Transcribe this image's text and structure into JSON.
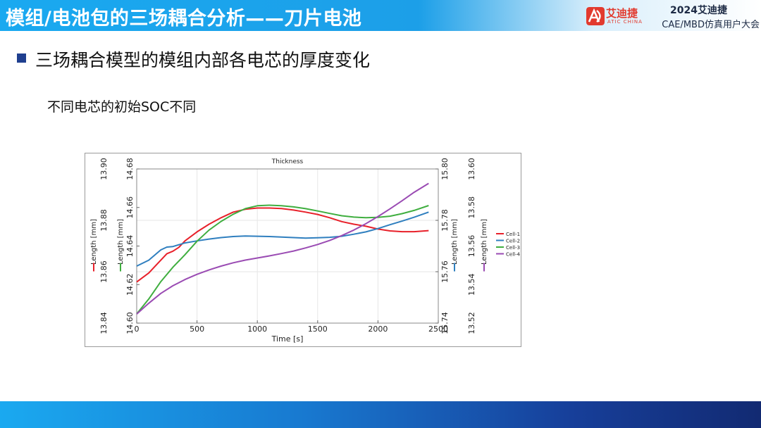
{
  "header": {
    "title": "模组/电池包的三场耦合分析——刀片电池",
    "logo_text": "艾迪捷",
    "logo_sub": "ATIC CHINA",
    "conference_line1": "2024艾迪捷",
    "conference_line2": "CAE/MBD仿真用户大会"
  },
  "content": {
    "heading": "三场耦合模型的模组内部各电芯的厚度变化",
    "subheading": "不同电芯的初始SOC不同"
  },
  "colors": {
    "accent": "#1aa9f0",
    "bullet": "#1f3f8f",
    "bottom_dark": "#122a72"
  },
  "chart_data": {
    "type": "line",
    "title": "Thickness",
    "xlabel": "Time [s]",
    "xlim": [
      0,
      2500
    ],
    "x_ticks": [
      "0",
      "500",
      "1000",
      "1500",
      "2000",
      "2500"
    ],
    "axes": [
      {
        "name": "Cell-1",
        "label": "Length [mm]",
        "side": "left",
        "ylim": [
          13.84,
          13.9
        ],
        "ticks": [
          "13.84",
          "13.86",
          "13.88",
          "13.90"
        ]
      },
      {
        "name": "Cell-3",
        "label": "Length [mm]",
        "side": "left",
        "ylim": [
          14.6,
          14.68
        ],
        "ticks": [
          "14.60",
          "14.62",
          "14.64",
          "14.66",
          "14.68"
        ]
      },
      {
        "name": "Cell-2",
        "label": "Length [mm]",
        "side": "right",
        "ylim": [
          15.74,
          15.8
        ],
        "ticks": [
          "15.74",
          "15.76",
          "15.78",
          "15.80"
        ]
      },
      {
        "name": "Cell-4",
        "label": "Length [mm]",
        "side": "right",
        "ylim": [
          13.52,
          13.6
        ],
        "ticks": [
          "13.52",
          "13.54",
          "13.56",
          "13.58",
          "13.60"
        ]
      }
    ],
    "legend_position": "right",
    "series": [
      {
        "name": "Cell-1",
        "color": "#e8202a",
        "axis": 0,
        "x": [
          0,
          100,
          200,
          250,
          300,
          350,
          400,
          500,
          600,
          700,
          800,
          900,
          1000,
          1100,
          1200,
          1300,
          1400,
          1500,
          1600,
          1700,
          1800,
          1900,
          2000,
          2100,
          2200,
          2300,
          2420
        ],
        "y": [
          13.856,
          13.8595,
          13.8645,
          13.867,
          13.868,
          13.8695,
          13.872,
          13.8755,
          13.8785,
          13.881,
          13.8832,
          13.8843,
          13.8848,
          13.8848,
          13.8846,
          13.884,
          13.8832,
          13.8823,
          13.881,
          13.8795,
          13.8785,
          13.8777,
          13.8766,
          13.8759,
          13.8756,
          13.8756,
          13.876
        ]
      },
      {
        "name": "Cell-2",
        "color": "#2f7fbf",
        "axis": 2,
        "x": [
          0,
          100,
          200,
          250,
          300,
          400,
          500,
          600,
          700,
          800,
          900,
          1000,
          1100,
          1200,
          1300,
          1400,
          1500,
          1600,
          1700,
          1800,
          1900,
          2000,
          2100,
          2200,
          2300,
          2420
        ],
        "y": [
          15.7622,
          15.7645,
          15.7685,
          15.7696,
          15.7698,
          15.7712,
          15.772,
          15.7727,
          15.7733,
          15.7737,
          15.7739,
          15.7738,
          15.7737,
          15.7735,
          15.7733,
          15.7731,
          15.7732,
          15.7734,
          15.7738,
          15.7746,
          15.7755,
          15.7768,
          15.7783,
          15.7797,
          15.7812,
          15.7832
        ]
      },
      {
        "name": "Cell-3",
        "color": "#3fae3f",
        "axis": 1,
        "x": [
          0,
          100,
          200,
          300,
          400,
          500,
          600,
          700,
          800,
          900,
          1000,
          1100,
          1200,
          1300,
          1400,
          1500,
          1600,
          1700,
          1800,
          1900,
          2000,
          2100,
          2200,
          2300,
          2420
        ],
        "y": [
          14.6048,
          14.6125,
          14.6215,
          14.629,
          14.6355,
          14.6425,
          14.6483,
          14.6528,
          14.6565,
          14.6594,
          14.6609,
          14.6612,
          14.6609,
          14.6603,
          14.6594,
          14.6582,
          14.6569,
          14.6557,
          14.655,
          14.6547,
          14.6549,
          14.6555,
          14.6568,
          14.6585,
          14.661
        ]
      },
      {
        "name": "Cell-4",
        "color": "#9a4bb3",
        "axis": 3,
        "x": [
          0,
          100,
          200,
          300,
          400,
          500,
          600,
          700,
          800,
          900,
          1000,
          1100,
          1200,
          1300,
          1400,
          1500,
          1600,
          1700,
          1800,
          1900,
          2000,
          2100,
          2200,
          2300,
          2420
        ],
        "y": [
          13.5247,
          13.5303,
          13.5354,
          13.5394,
          13.5426,
          13.5453,
          13.5476,
          13.5496,
          13.5513,
          13.5527,
          13.5538,
          13.5549,
          13.5561,
          13.5574,
          13.559,
          13.5608,
          13.5629,
          13.5654,
          13.5683,
          13.5716,
          13.5753,
          13.5793,
          13.5835,
          13.5879,
          13.5925
        ]
      }
    ]
  }
}
